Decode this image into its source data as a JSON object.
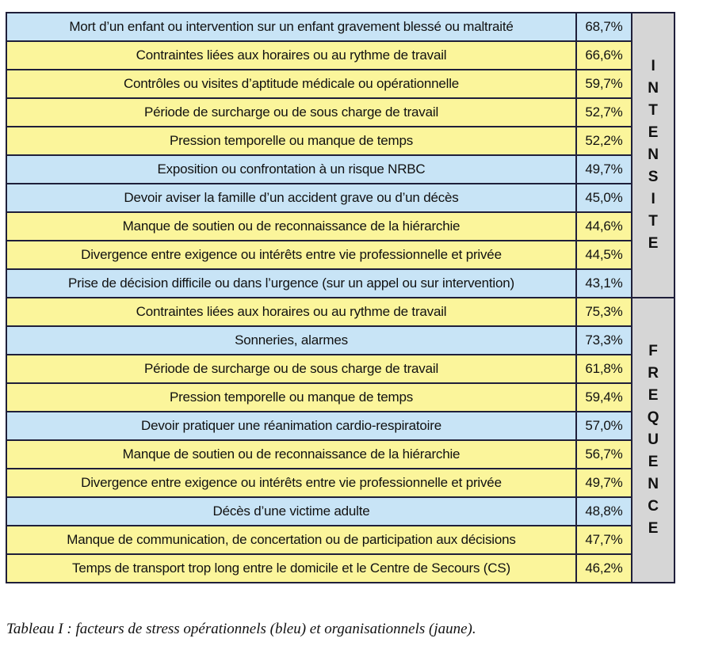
{
  "colors": {
    "operational": "#c8e4f6",
    "organisational": "#fbf59b",
    "side": "#d6d6d6",
    "border": "#1f1f3a"
  },
  "groups": [
    {
      "label": "INTENSITE",
      "rows": [
        {
          "factor": "Mort d’un enfant ou intervention sur un enfant gravement blessé ou maltraité",
          "value": "68,7%",
          "category": "operational"
        },
        {
          "factor": "Contraintes liées aux horaires ou au rythme de travail",
          "value": "66,6%",
          "category": "organisational"
        },
        {
          "factor": "Contrôles ou visites d’aptitude médicale ou opérationnelle",
          "value": "59,7%",
          "category": "organisational"
        },
        {
          "factor": "Période de surcharge ou de sous charge de travail",
          "value": "52,7%",
          "category": "organisational"
        },
        {
          "factor": "Pression temporelle ou manque de temps",
          "value": "52,2%",
          "category": "organisational"
        },
        {
          "factor": "Exposition ou confrontation à un risque NRBC",
          "value": "49,7%",
          "category": "operational"
        },
        {
          "factor": "Devoir aviser la famille d’un accident grave ou d’un décès",
          "value": "45,0%",
          "category": "operational"
        },
        {
          "factor": "Manque de soutien ou de reconnaissance de la hiérarchie",
          "value": "44,6%",
          "category": "organisational"
        },
        {
          "factor": "Divergence entre exigence ou intérêts entre vie professionnelle et privée",
          "value": "44,5%",
          "category": "organisational"
        },
        {
          "factor": "Prise de décision difficile ou dans l’urgence (sur un appel ou sur intervention)",
          "value": "43,1%",
          "category": "operational"
        }
      ]
    },
    {
      "label": "FREQUENCE",
      "rows": [
        {
          "factor": "Contraintes liées aux horaires ou au rythme de travail",
          "value": "75,3%",
          "category": "organisational"
        },
        {
          "factor": "Sonneries, alarmes",
          "value": "73,3%",
          "category": "operational"
        },
        {
          "factor": "Période de surcharge ou de sous charge de travail",
          "value": "61,8%",
          "category": "organisational"
        },
        {
          "factor": "Pression temporelle ou manque de temps",
          "value": "59,4%",
          "category": "organisational"
        },
        {
          "factor": "Devoir pratiquer une réanimation cardio-respiratoire",
          "value": "57,0%",
          "category": "operational"
        },
        {
          "factor": "Manque de soutien ou de reconnaissance de la hiérarchie",
          "value": "56,7%",
          "category": "organisational"
        },
        {
          "factor": "Divergence entre exigence ou intérêts entre vie professionnelle et privée",
          "value": "49,7%",
          "category": "organisational"
        },
        {
          "factor": "Décès d’une victime adulte",
          "value": "48,8%",
          "category": "operational"
        },
        {
          "factor": "Manque de communication, de concertation ou de participation aux décisions",
          "value": "47,7%",
          "category": "organisational"
        },
        {
          "factor": "Temps de transport trop long entre le domicile et le Centre de Secours (CS)",
          "value": "46,2%",
          "category": "organisational"
        }
      ]
    }
  ],
  "caption": "Tableau I : facteurs de stress opérationnels (bleu) et organisationnels (jaune)."
}
